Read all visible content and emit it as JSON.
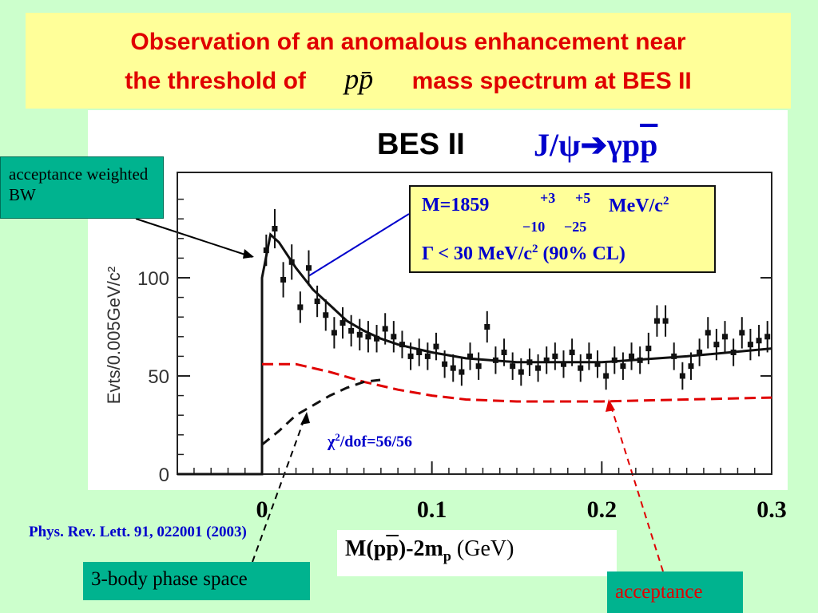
{
  "slide": {
    "title_part1": "Observation of an anomalous enhancement near",
    "title_part2a": "the threshold of",
    "title_math": "pp̄",
    "title_part2b": "mass spectrum at BES II",
    "experiment_label": "BES II",
    "reaction_a": "J/ψ",
    "reaction_arrow": "➔",
    "reaction_b": "γp",
    "reaction_c": "p",
    "reference": "Phys. Rev. Lett. 91, 022001 (2003)",
    "callouts": {
      "bw": "acceptance weighted BW",
      "phase_space": "3-body phase space",
      "acceptance": "acceptance"
    },
    "fit_box": {
      "mass_text": "M=1859",
      "err_up1": "+3",
      "err_up2": "+5",
      "err_dn1": "−10",
      "err_dn2": "−25",
      "mass_unit": "MeV/c",
      "mass_unit_exp": "2",
      "width_text": "Γ < 30 MeV/c",
      "width_exp": "2",
      "width_cl": " (90% CL)"
    },
    "chi2_text": "χ",
    "chi2_exp": "2",
    "chi2_rest": "/dof=56/56",
    "xlabel_a": "M(p",
    "xlabel_b": "p",
    "xlabel_c": ")-2m",
    "xlabel_sub": "p",
    "xlabel_unit": " (GeV)",
    "colors": {
      "title": "#e00000",
      "blue": "#0000cc",
      "green_box": "#00b38f",
      "yellow_box": "#ffff99",
      "acceptance_line": "#e00000"
    }
  },
  "chart_data": {
    "type": "scatter",
    "ylabel": "Evts/0.005GeV/c²",
    "xlim": [
      -0.05,
      0.3
    ],
    "ylim": [
      0,
      150
    ],
    "x_ticks": [
      0,
      0.1,
      0.2,
      0.3
    ],
    "x_tick_labels": [
      "0",
      "0.1",
      "0.2",
      "0.3"
    ],
    "y_ticks": [
      0,
      50,
      100
    ],
    "y_tick_labels": [
      "0",
      "50",
      "100"
    ],
    "series": [
      {
        "role": "data points with error bars",
        "points": [
          [
            0.0025,
            114,
            8
          ],
          [
            0.0075,
            125,
            10
          ],
          [
            0.0125,
            99,
            9
          ],
          [
            0.0175,
            108,
            9
          ],
          [
            0.0225,
            85,
            8
          ],
          [
            0.0275,
            105,
            9
          ],
          [
            0.0325,
            88,
            8
          ],
          [
            0.0375,
            81,
            8
          ],
          [
            0.0425,
            72,
            8
          ],
          [
            0.0475,
            77,
            8
          ],
          [
            0.0525,
            73,
            8
          ],
          [
            0.0575,
            71,
            8
          ],
          [
            0.0625,
            70,
            8
          ],
          [
            0.0675,
            69,
            7
          ],
          [
            0.0725,
            74,
            8
          ],
          [
            0.0775,
            70,
            8
          ],
          [
            0.0825,
            66,
            7
          ],
          [
            0.0875,
            60,
            7
          ],
          [
            0.0925,
            62,
            7
          ],
          [
            0.0975,
            60,
            7
          ],
          [
            0.1025,
            65,
            7
          ],
          [
            0.1075,
            56,
            7
          ],
          [
            0.1125,
            54,
            7
          ],
          [
            0.1175,
            52,
            7
          ],
          [
            0.1225,
            60,
            7
          ],
          [
            0.1275,
            55,
            7
          ],
          [
            0.1325,
            75,
            8
          ],
          [
            0.1375,
            58,
            7
          ],
          [
            0.1425,
            62,
            7
          ],
          [
            0.1475,
            55,
            7
          ],
          [
            0.1525,
            52,
            7
          ],
          [
            0.1575,
            57,
            7
          ],
          [
            0.1625,
            54,
            7
          ],
          [
            0.1675,
            58,
            7
          ],
          [
            0.1725,
            60,
            7
          ],
          [
            0.1775,
            56,
            7
          ],
          [
            0.1825,
            62,
            7
          ],
          [
            0.1875,
            54,
            7
          ],
          [
            0.1925,
            60,
            7
          ],
          [
            0.1975,
            56,
            7
          ],
          [
            0.2025,
            50,
            7
          ],
          [
            0.2075,
            58,
            7
          ],
          [
            0.2125,
            55,
            7
          ],
          [
            0.2175,
            60,
            7
          ],
          [
            0.2225,
            58,
            7
          ],
          [
            0.2275,
            64,
            8
          ],
          [
            0.2325,
            78,
            8
          ],
          [
            0.2375,
            78,
            8
          ],
          [
            0.2425,
            60,
            7
          ],
          [
            0.2475,
            50,
            7
          ],
          [
            0.2525,
            55,
            7
          ],
          [
            0.2575,
            62,
            7
          ],
          [
            0.2625,
            72,
            8
          ],
          [
            0.2675,
            66,
            8
          ],
          [
            0.2725,
            70,
            8
          ],
          [
            0.2775,
            62,
            7
          ],
          [
            0.2825,
            72,
            8
          ],
          [
            0.2875,
            66,
            8
          ],
          [
            0.2925,
            68,
            8
          ],
          [
            0.2975,
            70,
            8
          ]
        ]
      },
      {
        "role": "total fit",
        "points": [
          [
            -0.05,
            0
          ],
          [
            0,
            0
          ],
          [
            0,
            100
          ],
          [
            0.005,
            122
          ],
          [
            0.01,
            118
          ],
          [
            0.02,
            105
          ],
          [
            0.03,
            94
          ],
          [
            0.04,
            86
          ],
          [
            0.05,
            78
          ],
          [
            0.06,
            73
          ],
          [
            0.07,
            69
          ],
          [
            0.08,
            66
          ],
          [
            0.1,
            62
          ],
          [
            0.12,
            59
          ],
          [
            0.15,
            57
          ],
          [
            0.2,
            57
          ],
          [
            0.25,
            60
          ],
          [
            0.3,
            64
          ]
        ]
      },
      {
        "role": "acceptance",
        "points": [
          [
            0,
            56
          ],
          [
            0.02,
            56
          ],
          [
            0.04,
            52
          ],
          [
            0.06,
            47
          ],
          [
            0.08,
            43
          ],
          [
            0.1,
            40
          ],
          [
            0.12,
            38
          ],
          [
            0.15,
            37
          ],
          [
            0.2,
            37
          ],
          [
            0.25,
            38
          ],
          [
            0.3,
            39
          ]
        ]
      },
      {
        "role": "3-body phase space",
        "points": [
          [
            0,
            15
          ],
          [
            0.01,
            22
          ],
          [
            0.02,
            30
          ],
          [
            0.03,
            35
          ],
          [
            0.04,
            40
          ],
          [
            0.05,
            44
          ],
          [
            0.06,
            47
          ],
          [
            0.07,
            48
          ]
        ]
      }
    ]
  }
}
